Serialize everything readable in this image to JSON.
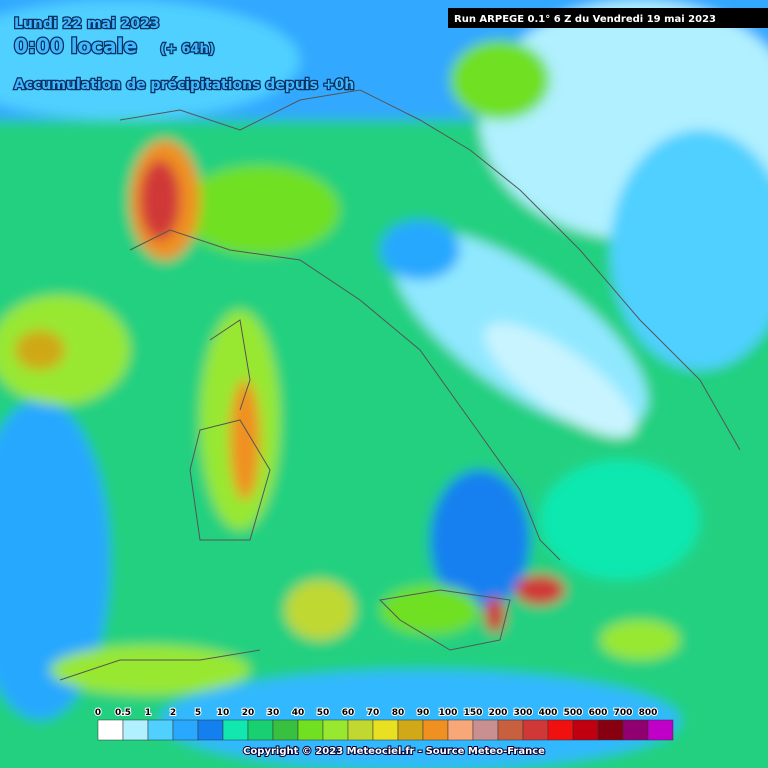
{
  "header": {
    "date": "Lundi 22 mai 2023",
    "time": "0:00 locale",
    "offset": "(+ 64h)",
    "product": "Accumulation de précipitations depuis +0h",
    "run": "Run ARPEGE 0.1° 6 Z du Vendredi 19 mai 2023"
  },
  "legend": {
    "items": [
      {
        "label": "0",
        "color": "#ffffff"
      },
      {
        "label": "0.5",
        "color": "#b0f0ff"
      },
      {
        "label": "1",
        "color": "#50d0ff"
      },
      {
        "label": "2",
        "color": "#28a8ff"
      },
      {
        "label": "5",
        "color": "#1480f0"
      },
      {
        "label": "10",
        "color": "#10e8b0"
      },
      {
        "label": "20",
        "color": "#18d070"
      },
      {
        "label": "30",
        "color": "#38c040"
      },
      {
        "label": "40",
        "color": "#70e020"
      },
      {
        "label": "50",
        "color": "#98e830"
      },
      {
        "label": "60",
        "color": "#c0d830"
      },
      {
        "label": "70",
        "color": "#e8e020"
      },
      {
        "label": "80",
        "color": "#d0a818"
      },
      {
        "label": "90",
        "color": "#f09020"
      },
      {
        "label": "100",
        "color": "#f8a878"
      },
      {
        "label": "150",
        "color": "#c89090"
      },
      {
        "label": "200",
        "color": "#c86040"
      },
      {
        "label": "300",
        "color": "#d03838"
      },
      {
        "label": "400",
        "color": "#f01010"
      },
      {
        "label": "500",
        "color": "#c00010"
      },
      {
        "label": "600",
        "color": "#880010"
      },
      {
        "label": "700",
        "color": "#900070"
      },
      {
        "label": "800",
        "color": "#c000c8"
      }
    ]
  },
  "footer": {
    "copyright": "Copyright © 2023 Meteociel.fr - Source Meteo-France"
  }
}
